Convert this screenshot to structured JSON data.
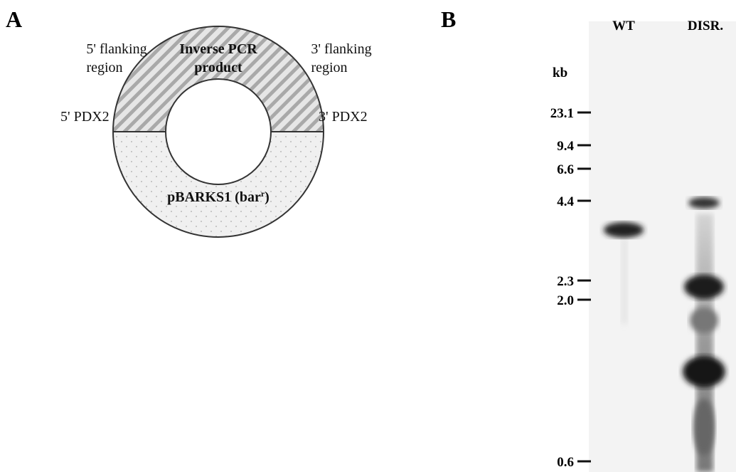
{
  "panel_a": {
    "letter": "A",
    "left_flank": [
      "5' flanking",
      "region"
    ],
    "insert": [
      "Inverse PCR",
      "product"
    ],
    "right_flank": [
      "3' flanking",
      "region"
    ],
    "left_end": "5' PDX2",
    "right_end": "3' PDX2",
    "vector": {
      "text": "pBARKS1 (bar",
      "sup": "r",
      "tail": ")"
    }
  },
  "panel_b": {
    "letter": "B",
    "lanes": [
      "WT",
      "DISR."
    ],
    "unit": "kb",
    "markers": [
      "23.1",
      "9.4",
      "6.6",
      "4.4",
      "2.3",
      "2.0",
      "0.6"
    ]
  }
}
